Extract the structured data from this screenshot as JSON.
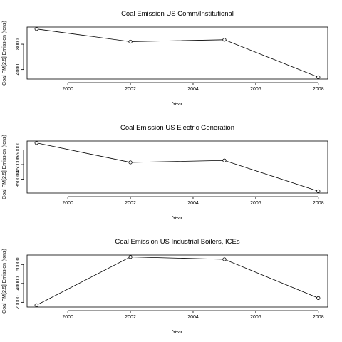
{
  "chart_data": [
    {
      "type": "line",
      "title": "Coal Emission US Comm/Institutional",
      "xlabel": "Year",
      "ylabel": "Coal PM[2.5] Emission (tons)",
      "x": [
        1999,
        2002,
        2005,
        2008
      ],
      "values": [
        10400,
        8400,
        8700,
        2800
      ],
      "xticks": [
        2000,
        2002,
        2004,
        2006,
        2008
      ],
      "yticks": [
        4000,
        8000
      ],
      "xlim": [
        1998.7,
        2008.3
      ],
      "ylim": [
        2500,
        10700
      ],
      "grid": false,
      "legend": "none"
    },
    {
      "type": "line",
      "title": "Coal Emission US Electric Generation",
      "xlabel": "Year",
      "ylabel": "Coal PM[2.5] Emission (tons)",
      "x": [
        1999,
        2002,
        2005,
        2008
      ],
      "values": [
        598000,
        465000,
        478000,
        268000
      ],
      "xticks": [
        2000,
        2002,
        2004,
        2006,
        2008
      ],
      "yticks": [
        350000,
        450000,
        550000
      ],
      "xlim": [
        1998.7,
        2008.3
      ],
      "ylim": [
        255000,
        611000
      ],
      "grid": false,
      "legend": "none"
    },
    {
      "type": "line",
      "title": "Coal Emission US Industrial Boilers, ICEs",
      "xlabel": "Year",
      "ylabel": "Coal PM[2.5] Emission (tons)",
      "x": [
        1999,
        2002,
        2005,
        2008
      ],
      "values": [
        17000,
        68000,
        65500,
        24500
      ],
      "xticks": [
        2000,
        2002,
        2004,
        2006,
        2008
      ],
      "yticks": [
        20000,
        40000,
        60000
      ],
      "xlim": [
        1998.7,
        2008.3
      ],
      "ylim": [
        15000,
        70000
      ],
      "grid": false,
      "legend": "none"
    }
  ]
}
